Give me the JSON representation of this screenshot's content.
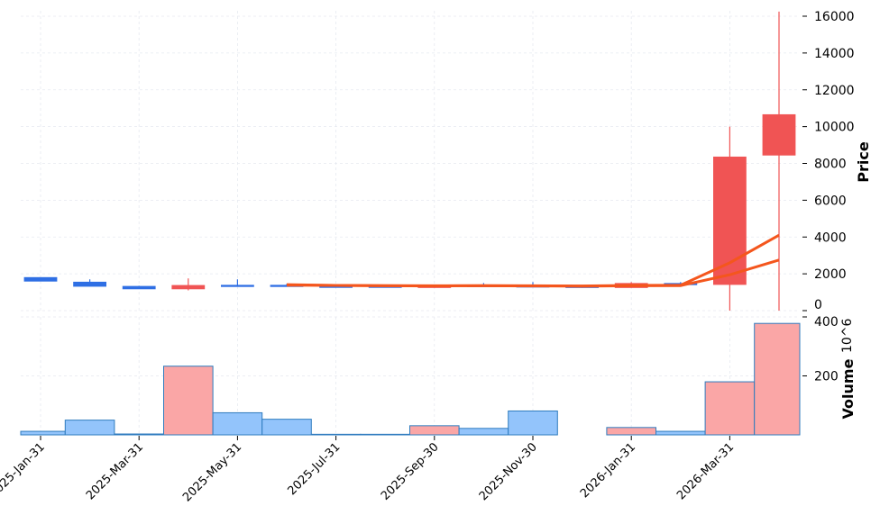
{
  "chart_data": [
    {
      "type": "candlestick",
      "ylabel": "Price",
      "ylim": [
        0,
        16500
      ],
      "yticks": [
        0,
        2000,
        4000,
        6000,
        8000,
        10000,
        12000,
        14000,
        16000
      ],
      "grid": true,
      "up_color": "#f05454",
      "down_color": "#2f6fe4",
      "ma_color": "#f4561d",
      "categories": [
        "2025-Jan",
        "2025-Feb",
        "2025-Mar",
        "2025-Apr",
        "2025-May",
        "2025-Jun",
        "2025-Jul",
        "2025-Aug",
        "2025-Sep",
        "2025-Oct",
        "2025-Nov",
        "2025-Dec",
        "2026-Jan",
        "2026-Feb",
        "2026-Mar",
        "2026-Apr"
      ],
      "open": [
        1800,
        1550,
        1320,
        1180,
        1380,
        1380,
        1330,
        1330,
        1250,
        1370,
        1350,
        1350,
        1250,
        1480,
        1420,
        8450
      ],
      "high": [
        1800,
        1700,
        1350,
        1750,
        1700,
        1450,
        1340,
        1340,
        1400,
        1500,
        1550,
        1360,
        1550,
        1550,
        10000,
        16250
      ],
      "low": [
        1600,
        1320,
        1180,
        1100,
        1350,
        1330,
        1280,
        1300,
        1240,
        1340,
        1310,
        1240,
        1240,
        1410,
        0,
        0
      ],
      "close": [
        1600,
        1320,
        1180,
        1370,
        1360,
        1330,
        1280,
        1300,
        1370,
        1350,
        1320,
        1250,
        1480,
        1420,
        8350,
        10650
      ],
      "moving_averages": [
        {
          "values": [
            null,
            null,
            null,
            null,
            null,
            1410,
            1370,
            1350,
            1340,
            1360,
            1350,
            1340,
            1370,
            1380,
            2600,
            4100
          ]
        },
        {
          "values": [
            null,
            null,
            null,
            null,
            null,
            1380,
            1370,
            1360,
            1350,
            1350,
            1340,
            1330,
            1350,
            1360,
            1950,
            2750
          ]
        }
      ]
    },
    {
      "type": "bar",
      "ylabel": "Volume",
      "yunit": "10^6",
      "ylim": [
        0,
        400
      ],
      "yticks": [
        200,
        400
      ],
      "up_color": "#faa6a6",
      "down_color": "#93c4fb",
      "edge_color": "#2f7cbf",
      "values": [
        12,
        50,
        3,
        233,
        75,
        53,
        2,
        2,
        31,
        22,
        81,
        0,
        25,
        12,
        180,
        378
      ]
    }
  ],
  "xaxis": {
    "tick_labels": [
      "2025-Jan-31",
      "2025-Mar-31",
      "2025-May-31",
      "2025-Jul-31",
      "2025-Sep-30",
      "2025-Nov-30",
      "2026-Jan-31",
      "2026-Mar-31"
    ],
    "tick_indices": [
      0,
      2,
      4,
      6,
      8,
      10,
      12,
      14
    ]
  },
  "labels": {
    "price": "Price",
    "volume": "Volume",
    "volume_exp_base": "10",
    "volume_exp": "6"
  }
}
